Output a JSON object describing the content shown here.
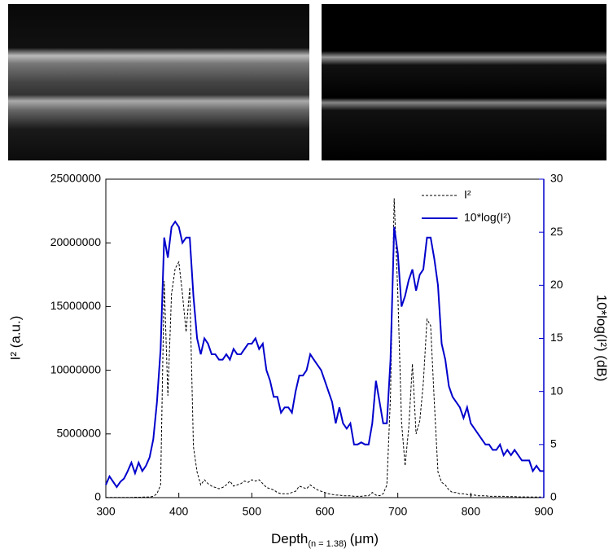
{
  "chart_data": {
    "type": "line",
    "x_label": [
      "Depth",
      "(n = 1.38)",
      "(μm)"
    ],
    "y_label": "I² (a.u.)",
    "y2_label": "10*log(I²) (dB)",
    "xlim": [
      300,
      900
    ],
    "xticks": [
      300,
      400,
      500,
      600,
      700,
      800,
      900
    ],
    "ylim": [
      0,
      25000000
    ],
    "yticks": [
      0,
      5000000,
      10000000,
      15000000,
      20000000,
      25000000
    ],
    "y2lim": [
      0,
      30
    ],
    "y2ticks": [
      0,
      5,
      10,
      15,
      20,
      25,
      30
    ],
    "y2_color": "#0000cc",
    "legend": "top-right",
    "x": [
      300,
      305,
      310,
      315,
      320,
      325,
      330,
      335,
      340,
      345,
      350,
      355,
      360,
      365,
      370,
      375,
      380,
      385,
      390,
      395,
      400,
      405,
      410,
      415,
      420,
      425,
      430,
      435,
      440,
      445,
      450,
      455,
      460,
      465,
      470,
      475,
      480,
      485,
      490,
      495,
      500,
      505,
      510,
      515,
      520,
      525,
      530,
      535,
      540,
      545,
      550,
      555,
      560,
      565,
      570,
      575,
      580,
      585,
      590,
      595,
      600,
      605,
      610,
      615,
      620,
      625,
      630,
      635,
      640,
      645,
      650,
      655,
      660,
      665,
      670,
      675,
      680,
      685,
      690,
      695,
      700,
      705,
      710,
      715,
      720,
      725,
      730,
      735,
      740,
      745,
      750,
      755,
      760,
      765,
      770,
      775,
      780,
      785,
      790,
      795,
      800,
      805,
      810,
      815,
      820,
      825,
      830,
      835,
      840,
      845,
      850,
      855,
      860,
      865,
      870,
      875,
      880,
      885,
      890,
      895,
      900
    ],
    "series": [
      {
        "name": "I²",
        "color": "#000000",
        "line_style": "dashed",
        "axis": "y",
        "values": [
          20000,
          20000,
          20000,
          20000,
          20000,
          20000,
          20000,
          20000,
          30000,
          30000,
          40000,
          50000,
          50000,
          100000,
          300000,
          1000000,
          17000000,
          8000000,
          16000000,
          18000000,
          18500000,
          16000000,
          13000000,
          16500000,
          4000000,
          2000000,
          1000000,
          1400000,
          1100000,
          900000,
          800000,
          700000,
          800000,
          1000000,
          1300000,
          900000,
          1000000,
          1100000,
          1300000,
          1200000,
          1400000,
          1300000,
          1400000,
          1100000,
          800000,
          700000,
          600000,
          400000,
          300000,
          300000,
          300000,
          400000,
          500000,
          900000,
          800000,
          700000,
          1000000,
          800000,
          600000,
          500000,
          400000,
          300000,
          250000,
          200000,
          200000,
          150000,
          150000,
          150000,
          100000,
          100000,
          100000,
          150000,
          150000,
          400000,
          200000,
          150000,
          300000,
          1000000,
          8000000,
          23500000,
          16000000,
          6000000,
          2500000,
          5500000,
          10500000,
          5000000,
          6000000,
          9000000,
          14000000,
          13500000,
          7500000,
          2000000,
          1200000,
          1000000,
          600000,
          400000,
          400000,
          300000,
          300000,
          250000,
          200000,
          200000,
          150000,
          150000,
          150000,
          100000,
          100000,
          100000,
          100000,
          100000,
          80000,
          80000,
          80000,
          60000,
          60000,
          60000,
          50000,
          50000,
          50000,
          50000,
          40000
        ]
      },
      {
        "name": "10*log(I²)",
        "color": "#0000cc",
        "line_style": "solid",
        "axis": "y2",
        "values": [
          1.2,
          2,
          1.5,
          1,
          1.5,
          1.8,
          2.5,
          3.3,
          2.3,
          3.3,
          2.5,
          3,
          3.8,
          5.5,
          9,
          14,
          24.5,
          22.6,
          25.5,
          26,
          25.5,
          24,
          24.5,
          24.5,
          19,
          15,
          13.5,
          15,
          14.5,
          13.5,
          13.5,
          13,
          13,
          13.5,
          13,
          14,
          13.5,
          13.5,
          14,
          14.5,
          14.5,
          15,
          14,
          14.5,
          12,
          11,
          9.5,
          9.5,
          8,
          8.5,
          8.5,
          8,
          10,
          11.5,
          11.5,
          12,
          13.5,
          13,
          12.5,
          12,
          11,
          10,
          9,
          7,
          8.5,
          7,
          6.5,
          7,
          5,
          5,
          5.2,
          5,
          5,
          7,
          11,
          9,
          7,
          7,
          13,
          25.5,
          23,
          18,
          19,
          20.5,
          21.5,
          19.5,
          21,
          21.5,
          24.5,
          24.5,
          22.5,
          20,
          14.5,
          13,
          10.5,
          9.5,
          9,
          8.5,
          7.5,
          8.5,
          7,
          6.5,
          6,
          5.5,
          5,
          5,
          4.5,
          4.5,
          5,
          4,
          4.5,
          4,
          4.5,
          4,
          3.5,
          3.5,
          3.5,
          2.5,
          3,
          2.5,
          2.5
        ]
      }
    ]
  }
}
